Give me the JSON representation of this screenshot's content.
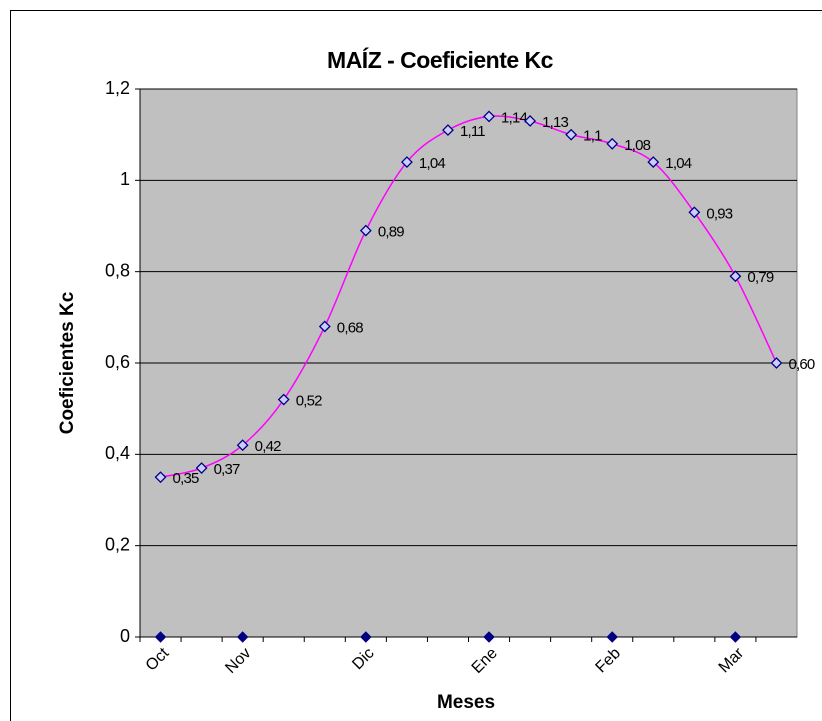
{
  "chart_data": {
    "type": "line",
    "title": "MAÍZ - Coeficiente Kc",
    "xlabel": "Meses",
    "ylabel": "Coeficientes Kc",
    "categories": [
      "Oct",
      null,
      "Nov",
      null,
      null,
      "Dic",
      null,
      null,
      "Ene",
      null,
      null,
      "Feb",
      null,
      null,
      "Mar",
      null
    ],
    "series": [
      {
        "color": "#ff00ff",
        "marker_fill": "#ccccff",
        "marker_stroke": "#000080",
        "values": [
          0.35,
          0.37,
          0.42,
          0.52,
          0.68,
          0.89,
          1.04,
          1.11,
          1.14,
          1.13,
          1.1,
          1.08,
          1.04,
          0.93,
          0.79,
          0.6
        ],
        "value_labels": [
          "0,35",
          "0,37",
          "0,42",
          "0,52",
          "0,68",
          "0,89",
          "1,04",
          "1,11",
          "1,14",
          "1,13",
          "1,1",
          "1,08",
          "1,04",
          "0,93",
          "0,79",
          "0,60"
        ]
      },
      {
        "color": "#000080",
        "values": [
          0,
          null,
          0,
          null,
          null,
          0,
          null,
          null,
          0,
          null,
          null,
          0,
          null,
          null,
          0,
          null
        ]
      }
    ],
    "ylim": [
      0,
      1.2
    ],
    "yticks": [
      0,
      {
        "value": 0.2,
        "label": "0,2"
      },
      {
        "value": 0.4,
        "label": "0,4"
      },
      {
        "value": 0.6,
        "label": "0,6"
      },
      {
        "value": 0.8,
        "label": "0,8"
      },
      1,
      {
        "value": 1.2,
        "label": "1,2"
      }
    ],
    "grid": true,
    "plot_background": "#c0c0c0"
  }
}
